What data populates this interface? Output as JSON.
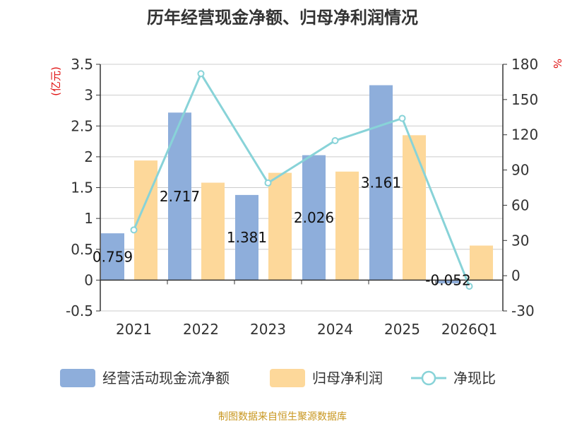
{
  "chart_data": {
    "type": "bar",
    "title": "历年经营现金净额、归母净利润情况",
    "categories": [
      "2021",
      "2022",
      "2023",
      "2024",
      "2025",
      "2026Q1"
    ],
    "series": [
      {
        "name": "经营活动现金流净额",
        "type": "bar",
        "axis": "left",
        "color": "#8eaedb",
        "values": [
          0.759,
          2.717,
          1.381,
          2.026,
          3.161,
          -0.052
        ],
        "labels": [
          "0.759",
          "2.717",
          "1.381",
          "2.026",
          "3.161",
          "-0.052"
        ]
      },
      {
        "name": "归母净利润",
        "type": "bar",
        "axis": "left",
        "color": "#fdd89a",
        "values": [
          1.94,
          1.58,
          1.74,
          1.76,
          2.35,
          0.56
        ]
      },
      {
        "name": "净现比",
        "type": "line",
        "axis": "right",
        "color": "#88d3d8",
        "values": [
          39,
          172,
          79,
          115,
          134,
          -9
        ]
      }
    ],
    "y_left": {
      "unit": "(亿元)",
      "min": -0.5,
      "max": 3.5,
      "ticks": [
        "-0.5",
        "0",
        "0.5",
        "1",
        "1.5",
        "2",
        "2.5",
        "3",
        "3.5"
      ]
    },
    "y_right": {
      "unit": "%",
      "min": -30,
      "max": 180,
      "ticks": [
        "-30",
        "0",
        "30",
        "60",
        "90",
        "120",
        "150",
        "180"
      ]
    },
    "grid": true,
    "legend_position": "bottom"
  },
  "source": "制图数据来自恒生聚源数据库"
}
